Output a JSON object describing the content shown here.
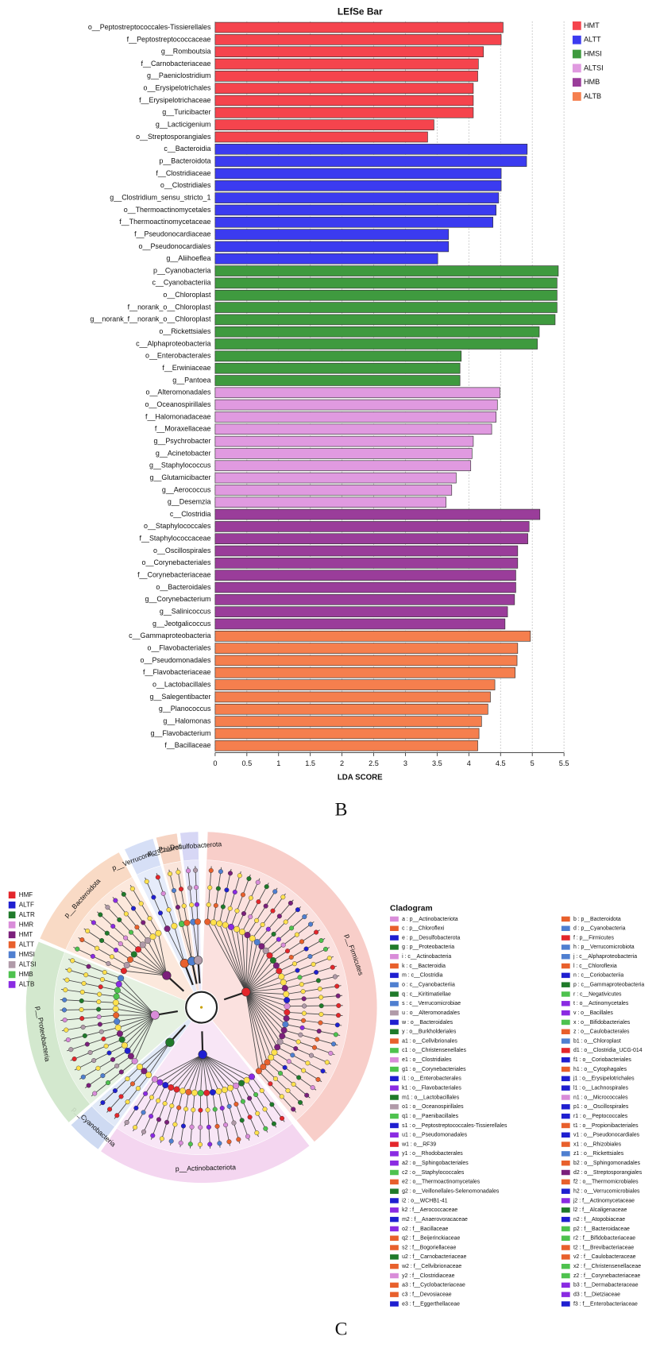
{
  "panel_labels": [
    "B",
    "C"
  ],
  "chart_data": [
    {
      "type": "hbar",
      "title": "LEfSe Bar",
      "x_label": "LDA SCORE",
      "xlim": [
        0,
        5.5
      ],
      "xticks": [
        0,
        0.5,
        1,
        1.5,
        2,
        2.5,
        3,
        3.5,
        4,
        4.5,
        5,
        5.5
      ],
      "grid": true,
      "legend": "top-right",
      "series": [
        {
          "name": "HMT",
          "color": "#f5444d",
          "categories": [
            "o__Peptostreptococcales-Tissierellales",
            "f__Peptostreptococcaceae",
            "g__Romboutsia",
            "f__Carnobacteriaceae",
            "g__Paeniclostridium",
            "o__Erysipelotrichales",
            "f__Erysipelotrichaceae",
            "g__Turicibacter",
            "g__Lacticigenium",
            "o__Streptosporangiales"
          ],
          "values": [
            4.54,
            4.51,
            4.23,
            4.15,
            4.14,
            4.07,
            4.07,
            4.07,
            3.45,
            3.35
          ]
        },
        {
          "name": "ALTT",
          "color": "#3b3bf0",
          "categories": [
            "c__Bacteroidia",
            "p__Bacteroidota",
            "f__Clostridiaceae",
            "o__Clostridiales",
            "g__Clostridium_sensu_stricto_1",
            "o__Thermoactinomycetales",
            "f__Thermoactinomycetaceae",
            "f__Pseudonocardiaceae",
            "o__Pseudonocardiales",
            "g__Aliihoeflea"
          ],
          "values": [
            4.92,
            4.91,
            4.51,
            4.51,
            4.47,
            4.43,
            4.38,
            3.68,
            3.68,
            3.51
          ]
        },
        {
          "name": "HMSI",
          "color": "#3f9a3f",
          "categories": [
            "p__Cyanobacteria",
            "c__Cyanobacteriia",
            "o__Chloroplast",
            "f__norank_o__Chloroplast",
            "g__norank_f__norank_o__Chloroplast",
            "o__Rickettsiales",
            "c__Alphaproteobacteria",
            "o__Enterobacterales",
            "f__Erwiniaceae",
            "g__Pantoea"
          ],
          "values": [
            5.41,
            5.39,
            5.39,
            5.39,
            5.36,
            5.11,
            5.08,
            3.88,
            3.86,
            3.86
          ]
        },
        {
          "name": "ALTSI",
          "color": "#e09ae0",
          "categories": [
            "o__Alteromonadales",
            "o__Oceanospirillales",
            "f__Halomonadaceae",
            "f__Moraxellaceae",
            "g__Psychrobacter",
            "g__Acinetobacter",
            "g__Staphylococcus",
            "g__Glutamicibacter",
            "g__Aerococcus",
            "g__Desemzia"
          ],
          "values": [
            4.49,
            4.45,
            4.43,
            4.36,
            4.07,
            4.05,
            4.03,
            3.8,
            3.73,
            3.64
          ]
        },
        {
          "name": "HMB",
          "color": "#9a3d9a",
          "categories": [
            "c__Clostridia",
            "o__Staphylococcales",
            "f__Staphylococcaceae",
            "o__Oscillospirales",
            "o__Corynebacteriales",
            "f__Corynebacteriaceae",
            "o__Bacteroidales",
            "g__Corynebacterium",
            "g__Salinicoccus",
            "g__Jeotgalicoccus"
          ],
          "values": [
            5.12,
            4.95,
            4.93,
            4.77,
            4.77,
            4.74,
            4.74,
            4.72,
            4.61,
            4.57
          ]
        },
        {
          "name": "ALTB",
          "color": "#f57f4e",
          "categories": [
            "c__Gammaproteobacteria",
            "o__Flavobacteriales",
            "o__Pseudomonadales",
            "f__Flavobacteriaceae",
            "o__Lactobacillales",
            "g__Salegentibacter",
            "g__Planococcus",
            "g__Halomonas",
            "g__Flavobacterium",
            "f__Bacillaceae"
          ],
          "values": [
            4.97,
            4.77,
            4.76,
            4.73,
            4.41,
            4.34,
            4.3,
            4.2,
            4.16,
            4.14
          ]
        }
      ]
    },
    {
      "type": "cladogram",
      "title": "Cladogram",
      "groups": [
        {
          "name": "HMF",
          "color": "#e3262b"
        },
        {
          "name": "ALTF",
          "color": "#1f1fd0"
        },
        {
          "name": "ALTR",
          "color": "#1f7a2a"
        },
        {
          "name": "HMR",
          "color": "#d98cd9"
        },
        {
          "name": "HMT",
          "color": "#7b1f7b"
        },
        {
          "name": "ALTT",
          "color": "#e8602c"
        },
        {
          "name": "HMSI",
          "color": "#4f7fd0"
        },
        {
          "name": "ALTSI",
          "color": "#b09aa8"
        },
        {
          "name": "HMB",
          "color": "#4ec24e"
        },
        {
          "name": "ALTB",
          "color": "#8a2be2"
        }
      ],
      "clades": [
        {
          "label": "p__Firmicutes",
          "color": "#f8c9c4"
        },
        {
          "label": "p__Actinobacteriota",
          "color": "#f3d2ef"
        },
        {
          "label": "p__Cyanobacteria",
          "color": "#c9d7f1"
        },
        {
          "label": "p__Proteobacteria",
          "color": "#cfe6c9"
        },
        {
          "label": "p__Bacteroidota",
          "color": "#f9d6bf"
        },
        {
          "label": "p__Verrucomicrobiota",
          "color": "#d2dcf6"
        },
        {
          "label": "p__Chloroflexi",
          "color": "#f6d0bd"
        },
        {
          "label": "p__Desulfobacterota",
          "color": "#d3d3f5"
        }
      ],
      "legend_columns": [
        [
          {
            "text": "a : p__Actinobacteriota",
            "color": "#d98cd9"
          },
          {
            "text": "c : p__Chloroflexi",
            "color": "#e8602c"
          },
          {
            "text": "e : p__Desulfobacterota",
            "color": "#1f1fd0"
          },
          {
            "text": "g : p__Proteobacteria",
            "color": "#1f7a2a"
          },
          {
            "text": "i : c__Actinobacteria",
            "color": "#d98cd9"
          },
          {
            "text": "k : c__Bacteroidia",
            "color": "#e8602c"
          },
          {
            "text": "m : c__Clostridia",
            "color": "#1f1fd0"
          },
          {
            "text": "o : c__Cyanobacteriia",
            "color": "#4f7fd0"
          },
          {
            "text": "q : c__Kiritimatiellae",
            "color": "#1f7a2a"
          },
          {
            "text": "s : c__Verrucomicrobiae",
            "color": "#4f7fd0"
          },
          {
            "text": "u : o__Alteromonadales",
            "color": "#b09aa8"
          },
          {
            "text": "w : o__Bacteroidales",
            "color": "#1f1fd0"
          },
          {
            "text": "y : o__Burkholderiales",
            "color": "#1f7a2a"
          },
          {
            "text": "a1 : o__Cellvibrionales",
            "color": "#e8602c"
          },
          {
            "text": "c1 : o__Christensenellales",
            "color": "#4ec24e"
          },
          {
            "text": "e1 : o__Clostridiales",
            "color": "#d98cd9"
          },
          {
            "text": "g1 : o__Corynebacteriales",
            "color": "#4ec24e"
          },
          {
            "text": "i1 : o__Enterobacterales",
            "color": "#1f1fd0"
          },
          {
            "text": "k1 : o__Flavobacteriales",
            "color": "#8a2be2"
          },
          {
            "text": "m1 : o__Lactobacillales",
            "color": "#1f7a2a"
          },
          {
            "text": "o1 : o__Oceanospirillales",
            "color": "#b09aa8"
          },
          {
            "text": "q1 : o__Paenibacillales",
            "color": "#4ec24e"
          },
          {
            "text": "s1 : o__Peptostreptococcales-Tissierellales",
            "color": "#1f1fd0"
          },
          {
            "text": "u1 : o__Pseudomonadales",
            "color": "#8a2be2"
          },
          {
            "text": "w1 : o__RF39",
            "color": "#e3262b"
          },
          {
            "text": "y1 : o__Rhodobacterales",
            "color": "#8a2be2"
          },
          {
            "text": "a2 : o__Sphingobacteriales",
            "color": "#8a2be2"
          },
          {
            "text": "c2 : o__Staphylococcales",
            "color": "#4ec24e"
          },
          {
            "text": "e2 : o__Thermoactinomycetales",
            "color": "#e8602c"
          },
          {
            "text": "g2 : o__Veillonellales-Selenomonadales",
            "color": "#1f7a2a"
          },
          {
            "text": "i2 : o__WCHB1-41",
            "color": "#1f1fd0"
          },
          {
            "text": "k2 : f__Aerococcaceae",
            "color": "#8a2be2"
          },
          {
            "text": "m2 : f__Anaerovoracaceae",
            "color": "#1f1fd0"
          },
          {
            "text": "o2 : f__Bacillaceae",
            "color": "#8a2be2"
          },
          {
            "text": "q2 : f__Beijerinckiaceae",
            "color": "#e8602c"
          },
          {
            "text": "s2 : f__Bogoriellaceae",
            "color": "#e8602c"
          },
          {
            "text": "u2 : f__Carnobacteriaceae",
            "color": "#1f7a2a"
          },
          {
            "text": "w2 : f__Cellvibrionaceae",
            "color": "#e8602c"
          },
          {
            "text": "y2 : f__Clostridiaceae",
            "color": "#d98cd9"
          },
          {
            "text": "a3 : f__Cyclobacteriaceae",
            "color": "#e8602c"
          },
          {
            "text": "c3 : f__Devosiaceae",
            "color": "#e8602c"
          },
          {
            "text": "e3 : f__Eggerthellaceae",
            "color": "#1f1fd0"
          }
        ],
        [
          {
            "text": "b : p__Bacteroidota",
            "color": "#e8602c"
          },
          {
            "text": "d : p__Cyanobacteria",
            "color": "#4f7fd0"
          },
          {
            "text": "f : p__Firmicutes",
            "color": "#e3262b"
          },
          {
            "text": "h : p__Verrucomicrobiota",
            "color": "#4f7fd0"
          },
          {
            "text": "j : c__Alphaproteobacteria",
            "color": "#4f7fd0"
          },
          {
            "text": "l : c__Chloroflexia",
            "color": "#e8602c"
          },
          {
            "text": "n : c__Coriobacteriia",
            "color": "#1f1fd0"
          },
          {
            "text": "p : c__Gammaproteobacteria",
            "color": "#1f7a2a"
          },
          {
            "text": "r : c__Negativicutes",
            "color": "#4ec24e"
          },
          {
            "text": "t : o__Actinomycetales",
            "color": "#8a2be2"
          },
          {
            "text": "v : o__Bacillales",
            "color": "#8a2be2"
          },
          {
            "text": "x : o__Bifidobacteriales",
            "color": "#4ec24e"
          },
          {
            "text": "z : o__Caulobacterales",
            "color": "#e8602c"
          },
          {
            "text": "b1 : o__Chloroplast",
            "color": "#4f7fd0"
          },
          {
            "text": "d1 : o__Clostridia_UCG-014",
            "color": "#e3262b"
          },
          {
            "text": "f1 : o__Coriobacteriales",
            "color": "#1f1fd0"
          },
          {
            "text": "h1 : o__Cytophagales",
            "color": "#e8602c"
          },
          {
            "text": "j1 : o__Erysipelotrichales",
            "color": "#1f1fd0"
          },
          {
            "text": "l1 : o__Lachnospirales",
            "color": "#1f1fd0"
          },
          {
            "text": "n1 : o__Micrococcales",
            "color": "#d98cd9"
          },
          {
            "text": "p1 : o__Oscillospirales",
            "color": "#1f1fd0"
          },
          {
            "text": "r1 : o__Peptococcales",
            "color": "#1f1fd0"
          },
          {
            "text": "t1 : o__Propionibacteriales",
            "color": "#e8602c"
          },
          {
            "text": "v1 : o__Pseudonocardiales",
            "color": "#1f1fd0"
          },
          {
            "text": "x1 : o__Rhizobiales",
            "color": "#e8602c"
          },
          {
            "text": "z1 : o__Rickettsiales",
            "color": "#4f7fd0"
          },
          {
            "text": "b2 : o__Sphingomonadales",
            "color": "#e8602c"
          },
          {
            "text": "d2 : o__Streptosporangiales",
            "color": "#7b1f7b"
          },
          {
            "text": "f2 : o__Thermomicrobiales",
            "color": "#e8602c"
          },
          {
            "text": "h2 : o__Verrucomicrobiales",
            "color": "#1f1fd0"
          },
          {
            "text": "j2 : f__Actinomycetaceae",
            "color": "#8a2be2"
          },
          {
            "text": "l2 : f__Alcaligenaceae",
            "color": "#1f7a2a"
          },
          {
            "text": "n2 : f__Atopobiaceae",
            "color": "#1f1fd0"
          },
          {
            "text": "p2 : f__Bacteroidaceae",
            "color": "#4ec24e"
          },
          {
            "text": "r2 : f__Bifidobacteriaceae",
            "color": "#4ec24e"
          },
          {
            "text": "t2 : f__Brevibacteriaceae",
            "color": "#e8602c"
          },
          {
            "text": "v2 : f__Caulobacteraceae",
            "color": "#e8602c"
          },
          {
            "text": "x2 : f__Christensenellaceae",
            "color": "#4ec24e"
          },
          {
            "text": "z2 : f__Corynebacteriaceae",
            "color": "#4ec24e"
          },
          {
            "text": "b3 : f__Dermabacteraceae",
            "color": "#8a2be2"
          },
          {
            "text": "d3 : f__Dietziaceae",
            "color": "#8a2be2"
          },
          {
            "text": "f3 : f__Enterobacteriaceae",
            "color": "#1f1fd0"
          }
        ]
      ]
    }
  ]
}
